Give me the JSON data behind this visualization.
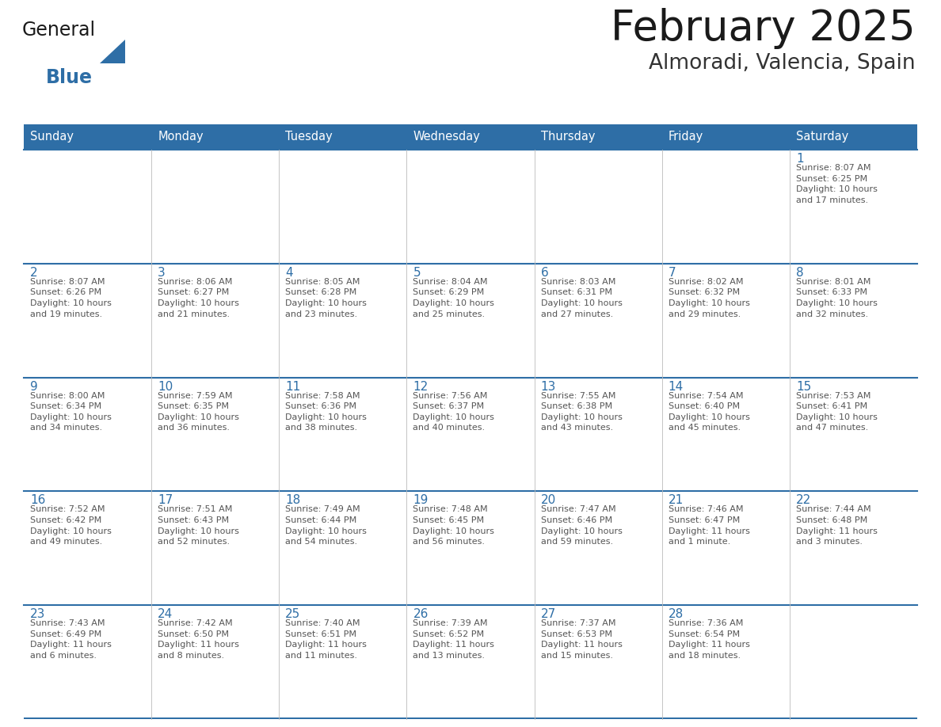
{
  "title": "February 2025",
  "subtitle": "Almoradi, Valencia, Spain",
  "days_of_week": [
    "Sunday",
    "Monday",
    "Tuesday",
    "Wednesday",
    "Thursday",
    "Friday",
    "Saturday"
  ],
  "header_bg": "#2E6EA6",
  "header_text_color": "#FFFFFF",
  "cell_bg": "#FFFFFF",
  "grid_line_color": "#2E6EA6",
  "day_number_color": "#2E6EA6",
  "info_text_color": "#555555",
  "title_color": "#1a1a1a",
  "subtitle_color": "#333333",
  "logo_general_color": "#1a1a1a",
  "logo_blue_color": "#2E6EA6",
  "calendar": [
    [
      null,
      null,
      null,
      null,
      null,
      null,
      {
        "day": "1",
        "sunrise": "8:07 AM",
        "sunset": "6:25 PM",
        "daylight": "10 hours\nand 17 minutes."
      }
    ],
    [
      {
        "day": "2",
        "sunrise": "8:07 AM",
        "sunset": "6:26 PM",
        "daylight": "10 hours\nand 19 minutes."
      },
      {
        "day": "3",
        "sunrise": "8:06 AM",
        "sunset": "6:27 PM",
        "daylight": "10 hours\nand 21 minutes."
      },
      {
        "day": "4",
        "sunrise": "8:05 AM",
        "sunset": "6:28 PM",
        "daylight": "10 hours\nand 23 minutes."
      },
      {
        "day": "5",
        "sunrise": "8:04 AM",
        "sunset": "6:29 PM",
        "daylight": "10 hours\nand 25 minutes."
      },
      {
        "day": "6",
        "sunrise": "8:03 AM",
        "sunset": "6:31 PM",
        "daylight": "10 hours\nand 27 minutes."
      },
      {
        "day": "7",
        "sunrise": "8:02 AM",
        "sunset": "6:32 PM",
        "daylight": "10 hours\nand 29 minutes."
      },
      {
        "day": "8",
        "sunrise": "8:01 AM",
        "sunset": "6:33 PM",
        "daylight": "10 hours\nand 32 minutes."
      }
    ],
    [
      {
        "day": "9",
        "sunrise": "8:00 AM",
        "sunset": "6:34 PM",
        "daylight": "10 hours\nand 34 minutes."
      },
      {
        "day": "10",
        "sunrise": "7:59 AM",
        "sunset": "6:35 PM",
        "daylight": "10 hours\nand 36 minutes."
      },
      {
        "day": "11",
        "sunrise": "7:58 AM",
        "sunset": "6:36 PM",
        "daylight": "10 hours\nand 38 minutes."
      },
      {
        "day": "12",
        "sunrise": "7:56 AM",
        "sunset": "6:37 PM",
        "daylight": "10 hours\nand 40 minutes."
      },
      {
        "day": "13",
        "sunrise": "7:55 AM",
        "sunset": "6:38 PM",
        "daylight": "10 hours\nand 43 minutes."
      },
      {
        "day": "14",
        "sunrise": "7:54 AM",
        "sunset": "6:40 PM",
        "daylight": "10 hours\nand 45 minutes."
      },
      {
        "day": "15",
        "sunrise": "7:53 AM",
        "sunset": "6:41 PM",
        "daylight": "10 hours\nand 47 minutes."
      }
    ],
    [
      {
        "day": "16",
        "sunrise": "7:52 AM",
        "sunset": "6:42 PM",
        "daylight": "10 hours\nand 49 minutes."
      },
      {
        "day": "17",
        "sunrise": "7:51 AM",
        "sunset": "6:43 PM",
        "daylight": "10 hours\nand 52 minutes."
      },
      {
        "day": "18",
        "sunrise": "7:49 AM",
        "sunset": "6:44 PM",
        "daylight": "10 hours\nand 54 minutes."
      },
      {
        "day": "19",
        "sunrise": "7:48 AM",
        "sunset": "6:45 PM",
        "daylight": "10 hours\nand 56 minutes."
      },
      {
        "day": "20",
        "sunrise": "7:47 AM",
        "sunset": "6:46 PM",
        "daylight": "10 hours\nand 59 minutes."
      },
      {
        "day": "21",
        "sunrise": "7:46 AM",
        "sunset": "6:47 PM",
        "daylight": "11 hours\nand 1 minute."
      },
      {
        "day": "22",
        "sunrise": "7:44 AM",
        "sunset": "6:48 PM",
        "daylight": "11 hours\nand 3 minutes."
      }
    ],
    [
      {
        "day": "23",
        "sunrise": "7:43 AM",
        "sunset": "6:49 PM",
        "daylight": "11 hours\nand 6 minutes."
      },
      {
        "day": "24",
        "sunrise": "7:42 AM",
        "sunset": "6:50 PM",
        "daylight": "11 hours\nand 8 minutes."
      },
      {
        "day": "25",
        "sunrise": "7:40 AM",
        "sunset": "6:51 PM",
        "daylight": "11 hours\nand 11 minutes."
      },
      {
        "day": "26",
        "sunrise": "7:39 AM",
        "sunset": "6:52 PM",
        "daylight": "11 hours\nand 13 minutes."
      },
      {
        "day": "27",
        "sunrise": "7:37 AM",
        "sunset": "6:53 PM",
        "daylight": "11 hours\nand 15 minutes."
      },
      {
        "day": "28",
        "sunrise": "7:36 AM",
        "sunset": "6:54 PM",
        "daylight": "11 hours\nand 18 minutes."
      },
      null
    ]
  ]
}
